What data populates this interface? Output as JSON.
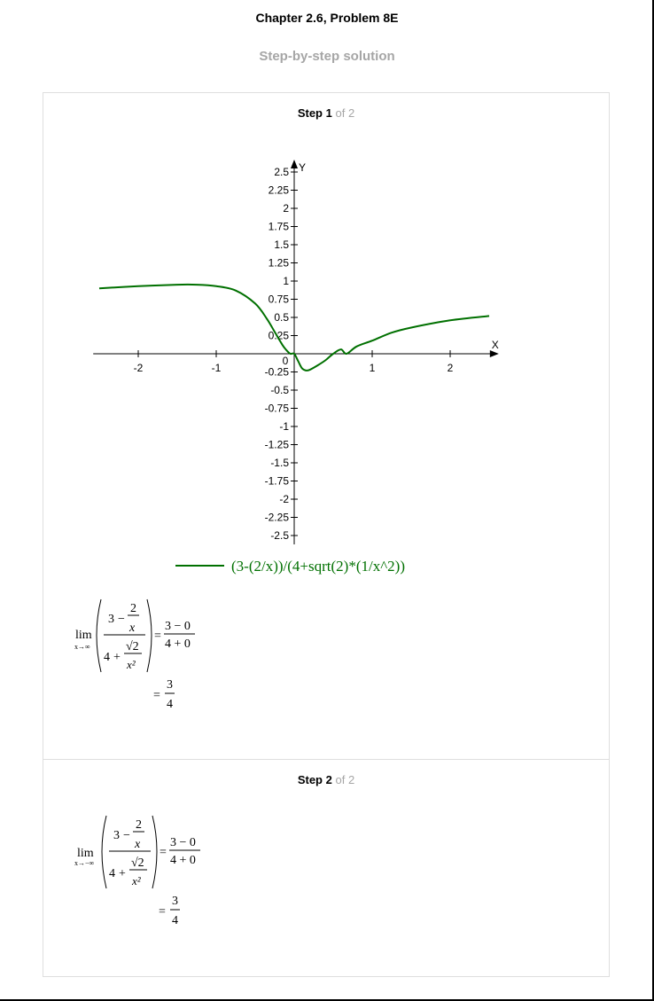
{
  "header": {
    "title": "Chapter 2.6, Problem 8E",
    "subtitle": "Step-by-step solution"
  },
  "steps": [
    {
      "label": "Step",
      "number": "1",
      "of": "of 2"
    },
    {
      "label": "Step",
      "number": "2",
      "of": "of 2"
    }
  ],
  "chart_data": {
    "type": "line",
    "xlabel": "X",
    "ylabel": "Y",
    "xlim": [
      -2.6,
      2.6
    ],
    "ylim": [
      -2.5,
      2.5
    ],
    "x_ticks": [
      -2,
      -1,
      0,
      1,
      2
    ],
    "x_tick_labels": [
      "-2",
      "-1",
      "0",
      "1",
      "2"
    ],
    "y_ticks": [
      2.5,
      2.25,
      2,
      1.75,
      1.5,
      1.25,
      1,
      0.75,
      0.5,
      0.25,
      -0.25,
      -0.5,
      -0.75,
      -1,
      -1.25,
      -1.5,
      -1.75,
      -2,
      -2.25,
      -2.5
    ],
    "y_tick_labels": [
      "2.5",
      "2.25",
      "2",
      "1.75",
      "1.5",
      "1.25",
      "1",
      "0.75",
      "0.5",
      "0.25",
      "-0.25",
      "-0.5",
      "-0.75",
      "-1",
      "-1.25",
      "-1.5",
      "-1.75",
      "-2",
      "-2.25",
      "-2.5"
    ],
    "series": [
      {
        "name": "(3-(2/x))/(4+sqrt(2)*(1/x^2))",
        "color": "#007000",
        "x": [
          -2.5,
          -2.0,
          -1.5,
          -1.25,
          -1.0,
          -0.75,
          -0.5,
          -0.35,
          -0.25,
          -0.15,
          -0.1,
          -0.05,
          0.0,
          0.05,
          0.1,
          0.15,
          0.2,
          0.3,
          0.4,
          0.5,
          0.6,
          0.67,
          0.8,
          1.0,
          1.25,
          1.5,
          2.0,
          2.5
        ],
        "y": [
          0.9,
          0.93,
          0.95,
          0.95,
          0.93,
          0.87,
          0.69,
          0.48,
          0.3,
          0.12,
          0.05,
          0.0,
          0.0,
          -0.1,
          -0.2,
          -0.23,
          -0.22,
          -0.16,
          -0.09,
          0.0,
          0.06,
          0.0,
          0.1,
          0.18,
          0.29,
          0.36,
          0.46,
          0.52
        ]
      }
    ]
  },
  "solutions": [
    {
      "lim": "lim",
      "sub": "x→∞",
      "n_whole": "3",
      "n_minus": "−",
      "n_num": "2",
      "n_den": "x",
      "d_whole": "4",
      "d_plus": "+",
      "d_num": "√2",
      "d_den": "x²",
      "eq": "=",
      "r1_num": "3 − 0",
      "r1_den": "4 + 0",
      "r2_num": "3",
      "r2_den": "4"
    },
    {
      "lim": "lim",
      "sub": "x→−∞",
      "n_whole": "3",
      "n_minus": "−",
      "n_num": "2",
      "n_den": "x",
      "d_whole": "4",
      "d_plus": "+",
      "d_num": "√2",
      "d_den": "x²",
      "eq": "=",
      "r1_num": "3 − 0",
      "r1_den": "4 + 0",
      "r2_num": "3",
      "r2_den": "4"
    }
  ]
}
